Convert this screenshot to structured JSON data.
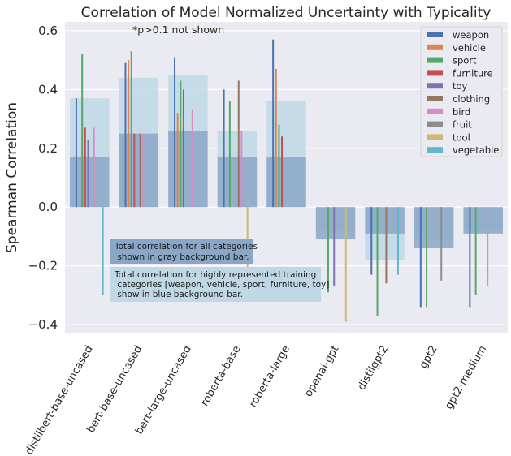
{
  "chart_data": {
    "type": "bar",
    "title": "Correlation of Model Normalized Uncertainty with Typicality",
    "ylabel": "Spearman Correlation",
    "xlabel": "",
    "ylim": [
      -0.43,
      0.63
    ],
    "yticks": [
      -0.4,
      -0.2,
      0.0,
      0.2,
      0.4,
      0.6
    ],
    "ytick_labels": [
      "−0.4",
      "−0.2",
      "0.0",
      "0.2",
      "0.4",
      "0.6"
    ],
    "grid": true,
    "legend_position": "top-right",
    "categories": [
      "distilbert-base-uncased",
      "bert-base-uncased",
      "bert-large-uncased",
      "roberta-base",
      "roberta-large",
      "openai-gpt",
      "distilgpt2",
      "gpt2",
      "gpt2-medium"
    ],
    "series": [
      {
        "name": "weapon",
        "color": "#4c72b0",
        "values": [
          0.37,
          0.49,
          0.51,
          0.4,
          0.57,
          0,
          -0.23,
          -0.34,
          -0.34
        ]
      },
      {
        "name": "vehicle",
        "color": "#dd8452",
        "values": [
          0,
          0.5,
          0.32,
          0,
          0.47,
          0,
          0,
          0,
          0
        ]
      },
      {
        "name": "sport",
        "color": "#55a868",
        "values": [
          0.52,
          0.53,
          0.43,
          0.36,
          0.28,
          -0.29,
          -0.37,
          -0.34,
          -0.3
        ]
      },
      {
        "name": "furniture",
        "color": "#c44e52",
        "values": [
          0.27,
          0.25,
          0.4,
          0,
          0.24,
          0,
          0,
          0,
          0
        ]
      },
      {
        "name": "toy",
        "color": "#8172b3",
        "values": [
          0.23,
          0,
          0,
          0,
          0,
          -0.27,
          0,
          0,
          0
        ]
      },
      {
        "name": "clothing",
        "color": "#937860",
        "values": [
          0,
          0.25,
          0,
          0.43,
          0,
          0,
          -0.26,
          0,
          0
        ]
      },
      {
        "name": "bird",
        "color": "#da8bc3",
        "values": [
          0.27,
          0.25,
          0.33,
          0.26,
          0,
          0,
          0,
          0,
          -0.27
        ]
      },
      {
        "name": "fruit",
        "color": "#8c8c8c",
        "values": [
          0,
          0,
          0,
          0,
          0,
          0,
          0,
          -0.25,
          0
        ]
      },
      {
        "name": "tool",
        "color": "#ccb974",
        "values": [
          0,
          0,
          0,
          -0.31,
          0,
          -0.39,
          0,
          0,
          0
        ]
      },
      {
        "name": "vegetable",
        "color": "#64b5cd",
        "values": [
          -0.3,
          0,
          0,
          0,
          0,
          0,
          -0.23,
          0,
          0
        ]
      }
    ],
    "background_total": {
      "name": "Total correlation for all categories",
      "color": "#8aa7c7",
      "values": [
        0.17,
        0.25,
        0.26,
        0.17,
        0.17,
        -0.11,
        -0.09,
        -0.14,
        -0.09
      ]
    },
    "background_highrep": {
      "name": "Total correlation for highly represented training categories",
      "color": "#c0d8e6",
      "values": [
        0.37,
        0.44,
        0.45,
        0.26,
        0.36,
        -0.08,
        -0.18,
        -0.11,
        -0.08
      ]
    },
    "annotations": {
      "note": "*p>0.1 not shown",
      "gray_box": [
        "Total correlation for all categories",
        " shown in gray background bar."
      ],
      "blue_box": [
        "Total correlation for highly represented training",
        " categories [weapon, vehicle, sport, furniture, toy]",
        " show in blue background bar."
      ]
    }
  }
}
